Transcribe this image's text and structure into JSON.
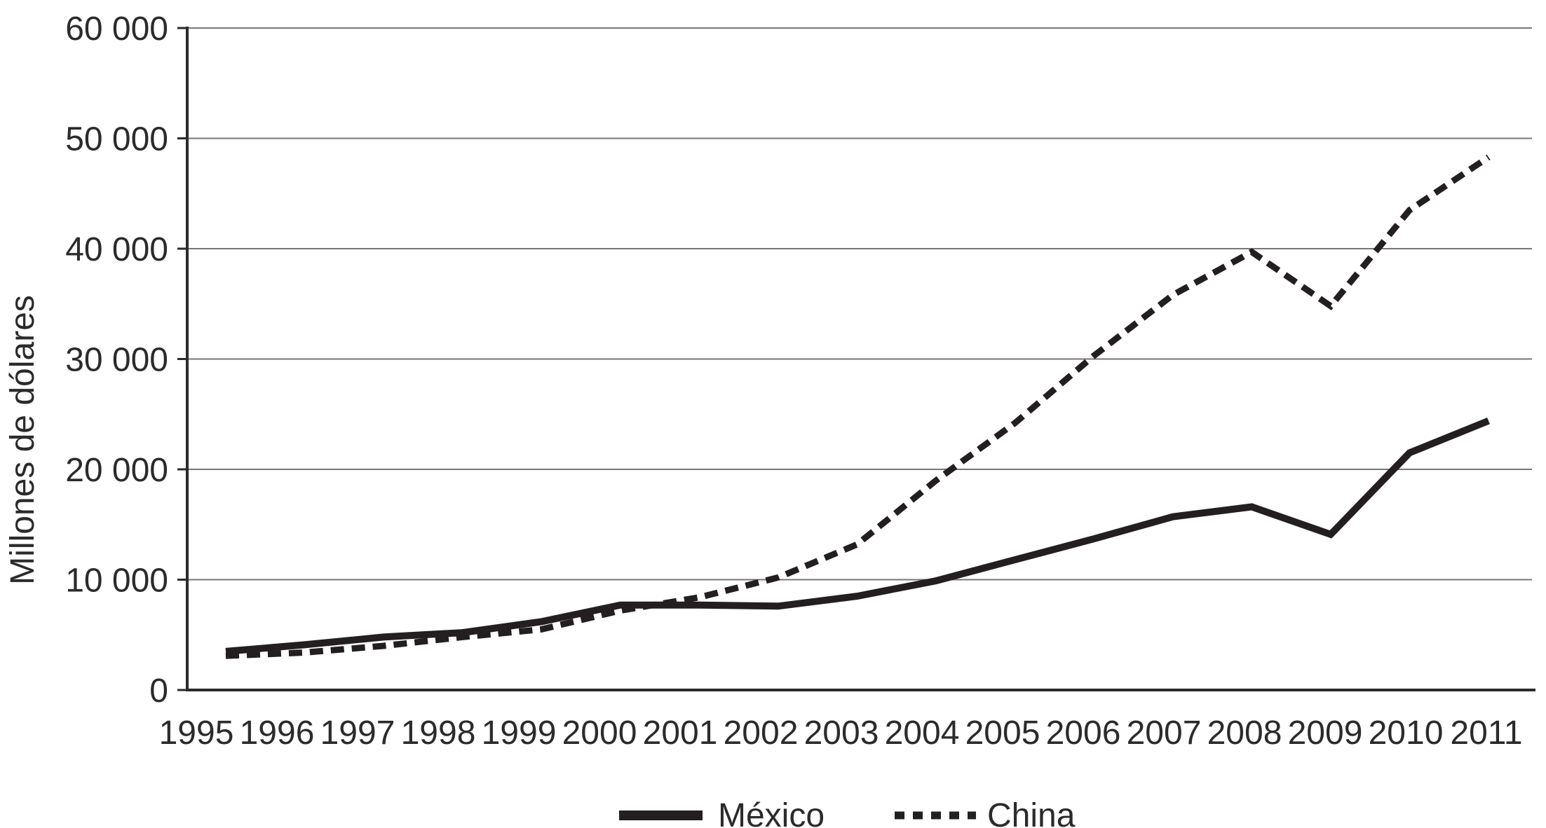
{
  "chart_data": {
    "type": "line",
    "title": "",
    "ylabel": "Millones de dólares",
    "xlabel": "",
    "categories": [
      "1995",
      "1996",
      "1997",
      "1998",
      "1999",
      "2000",
      "2001",
      "2002",
      "2003",
      "2004",
      "2005",
      "2006",
      "2007",
      "2008",
      "2009",
      "2010",
      "2011"
    ],
    "series": [
      {
        "name": "México",
        "style": "solid",
        "values": [
          3500,
          4100,
          4800,
          5200,
          6200,
          7700,
          7700,
          7600,
          8500,
          9900,
          11800,
          13700,
          15700,
          16600,
          14100,
          21500,
          24400
        ]
      },
      {
        "name": "China",
        "style": "dashed",
        "values": [
          3100,
          3400,
          4000,
          4800,
          5500,
          7200,
          8400,
          10200,
          13200,
          19000,
          24200,
          30300,
          35800,
          39700,
          34800,
          43500,
          48300
        ]
      }
    ],
    "ylim": [
      0,
      60000
    ],
    "ytick_step": 10000,
    "ytick_labels": [
      "0",
      "10 000",
      "20 000",
      "30 000",
      "40 000",
      "50 000",
      "60 000"
    ],
    "grid": "horizontal",
    "legend_position": "bottom"
  },
  "colors": {
    "line": "#231f20",
    "grid": "#767676",
    "axis": "#2b2b2b",
    "text": "#2b2b2b",
    "background": "#ffffff"
  }
}
